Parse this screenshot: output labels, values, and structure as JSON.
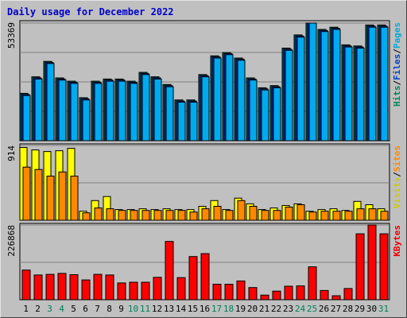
{
  "chart_data": {
    "type": "bar",
    "title": "Daily usage for December 2022",
    "categories": [
      "1",
      "2",
      "3",
      "4",
      "5",
      "6",
      "7",
      "8",
      "9",
      "10",
      "11",
      "12",
      "13",
      "14",
      "15",
      "16",
      "17",
      "18",
      "19",
      "20",
      "21",
      "22",
      "23",
      "24",
      "25",
      "26",
      "27",
      "28",
      "29",
      "30",
      "31"
    ],
    "weekend_days": [
      "3",
      "4",
      "10",
      "11",
      "17",
      "18",
      "24",
      "25",
      "31"
    ],
    "panels": [
      {
        "id": "hits",
        "ymax_label": "53369",
        "ymax": 53369,
        "axis_labels": [
          {
            "text": "Pages",
            "color": "#00aadd"
          },
          {
            "text": "Files",
            "color": "#0044cc"
          },
          {
            "text": "Hits",
            "color": "#008855"
          }
        ],
        "series": [
          {
            "name": "Hits",
            "color": "#006666",
            "values": [
              21500,
              29000,
              36000,
              28500,
              27000,
              19500,
              27000,
              28000,
              28000,
              27000,
              31000,
              29000,
              25500,
              18500,
              18500,
              30000,
              38500,
              40000,
              37500,
              28500,
              24000,
              25000,
              42000,
              48000,
              55500,
              50500,
              51500,
              43500,
              43000,
              52500,
              52500
            ]
          },
          {
            "name": "Files",
            "color": "#0033cc",
            "values": [
              21000,
              28500,
              35500,
              28000,
              26500,
              19000,
              26500,
              27500,
              27500,
              26500,
              30500,
              28500,
              25000,
              18000,
              18000,
              29500,
              38000,
              39500,
              37000,
              28000,
              23500,
              24500,
              41500,
              47500,
              55000,
              50000,
              51000,
              43000,
              42500,
              52000,
              52000
            ]
          },
          {
            "name": "Pages",
            "color": "#00aaee",
            "values": [
              20500,
              28000,
              35000,
              27500,
              26000,
              18500,
              26000,
              27000,
              27000,
              26000,
              30000,
              28000,
              24500,
              17500,
              17500,
              29000,
              37500,
              39000,
              36500,
              27500,
              23000,
              24000,
              41000,
              47000,
              54500,
              49500,
              50500,
              42500,
              42000,
              51500,
              51500
            ]
          }
        ]
      },
      {
        "id": "visits",
        "ymax_label": "914",
        "ymax": 914,
        "axis_labels": [
          {
            "text": "Sites",
            "color": "#ff8800"
          },
          {
            "text": "Visits",
            "color": "#cccc00"
          }
        ],
        "series": [
          {
            "name": "Visits",
            "color": "#ffff00",
            "values": [
              890,
              860,
              840,
              850,
              880,
              110,
              240,
              290,
              130,
              130,
              140,
              130,
              140,
              130,
              130,
              170,
              240,
              130,
              270,
              200,
              130,
              150,
              180,
              200,
              110,
              130,
              140,
              120,
              230,
              190,
              140
            ]
          },
          {
            "name": "Sites",
            "color": "#ff8800",
            "values": [
              650,
              620,
              540,
              590,
              540,
              90,
              150,
              140,
              120,
              120,
              120,
              120,
              120,
              120,
              100,
              140,
              170,
              120,
              240,
              170,
              120,
              120,
              160,
              190,
              100,
              110,
              110,
              110,
              140,
              140,
              110
            ]
          }
        ]
      },
      {
        "id": "kbytes",
        "ymax_label": "226868",
        "ymax": 226868,
        "axis_labels": [
          {
            "text": "KBytes",
            "color": "#ee0000"
          }
        ],
        "series": [
          {
            "name": "KBytes",
            "color": "#ff0000",
            "values": [
              90000,
              75000,
              77000,
              80000,
              76000,
              60000,
              77000,
              75000,
              51000,
              53000,
              53000,
              68000,
              177000,
              67000,
              131000,
              140000,
              47000,
              47000,
              57000,
              37000,
              14000,
              26000,
              41000,
              42000,
              100000,
              28000,
              12000,
              34000,
              200000,
              230000,
              200000
            ]
          }
        ]
      }
    ]
  }
}
